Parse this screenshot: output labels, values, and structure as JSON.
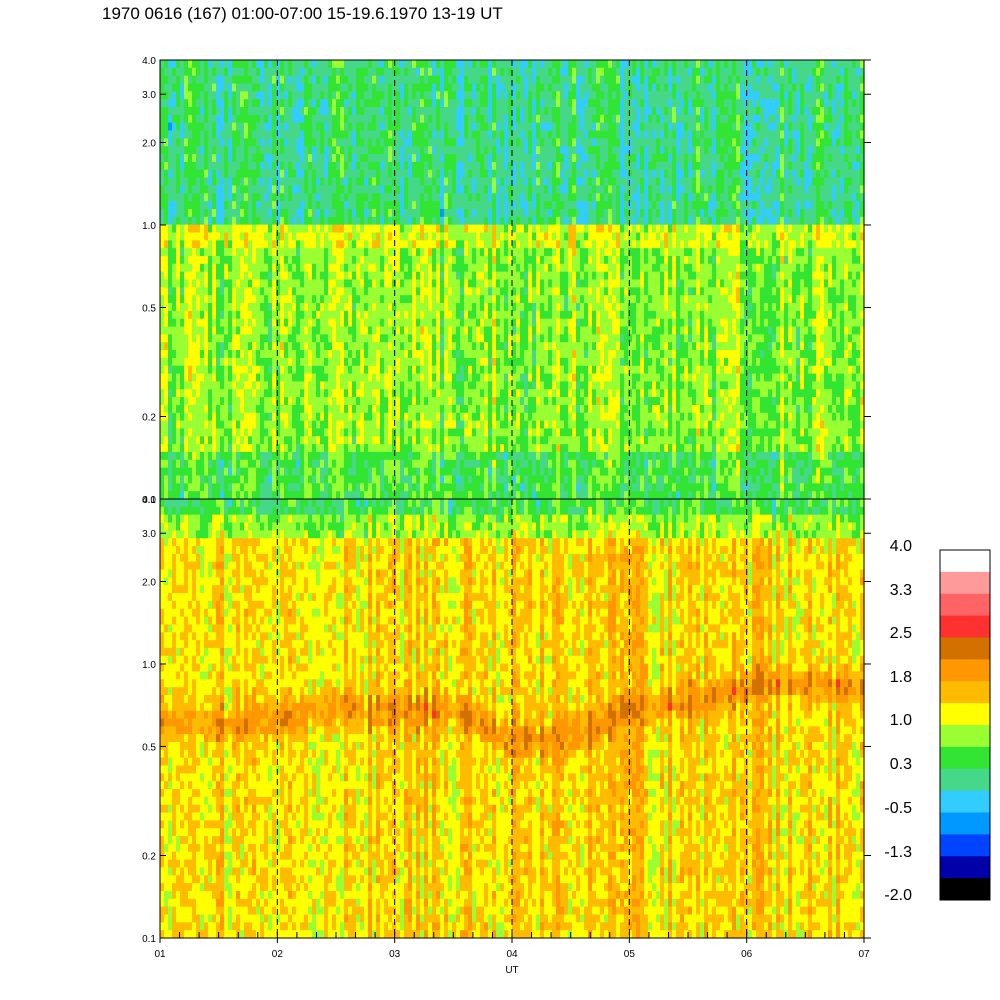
{
  "title": "1970 0616 (167) 01:00-07:00 15-19.6.1970  13-19 UT",
  "chart_data": [
    {
      "type": "heatmap",
      "panel": "upper",
      "y_scale": "log",
      "ylim": [
        0.1,
        4.0
      ],
      "y_ticks": [
        "0.1",
        "0.2",
        "0.5",
        "1.0",
        "2.0",
        "3.0",
        "4.0"
      ],
      "y_tick_values": [
        0.1,
        0.2,
        0.5,
        1.0,
        2.0,
        3.0,
        4.0
      ],
      "xlim": [
        1,
        7
      ],
      "dashed_vertical_lines_at": [
        2,
        3,
        4,
        5,
        6
      ],
      "dominant_levels": [
        {
          "freq_range": [
            0.1,
            0.15
          ],
          "level": 0.3
        },
        {
          "freq_range": [
            0.15,
            0.8
          ],
          "level": 0.7
        },
        {
          "freq_range": [
            0.8,
            1.0
          ],
          "level": 1.0
        },
        {
          "freq_range": [
            1.0,
            4.0
          ],
          "level": 0.0
        }
      ]
    },
    {
      "type": "heatmap",
      "panel": "lower",
      "y_scale": "log",
      "ylim": [
        0.1,
        4.0
      ],
      "y_ticks": [
        "0.1",
        "0.2",
        "0.5",
        "1.0",
        "2.0",
        "3.0",
        "4.0"
      ],
      "y_tick_values": [
        0.1,
        0.2,
        0.5,
        1.0,
        2.0,
        3.0,
        4.0
      ],
      "xlabel": "UT",
      "x_ticks": [
        "01",
        "02",
        "03",
        "04",
        "05",
        "06",
        "07"
      ],
      "x_tick_values": [
        1,
        2,
        3,
        4,
        5,
        6,
        7
      ],
      "xlim": [
        1,
        7
      ],
      "dashed_vertical_lines_at": [
        2,
        3,
        4,
        5,
        6
      ],
      "peak_band": [
        {
          "x": 1.0,
          "freq": 0.62
        },
        {
          "x": 1.5,
          "freq": 0.6
        },
        {
          "x": 2.0,
          "freq": 0.62
        },
        {
          "x": 2.5,
          "freq": 0.7
        },
        {
          "x": 3.0,
          "freq": 0.66
        },
        {
          "x": 3.5,
          "freq": 0.68
        },
        {
          "x": 4.0,
          "freq": 0.52
        },
        {
          "x": 4.5,
          "freq": 0.54
        },
        {
          "x": 5.0,
          "freq": 0.68
        },
        {
          "x": 5.5,
          "freq": 0.74
        },
        {
          "x": 5.85,
          "freq": 0.76
        },
        {
          "x": 6.1,
          "freq": 0.85
        },
        {
          "x": 7.0,
          "freq": 0.83
        }
      ],
      "peak_level": 2.1,
      "background_level": 1.4
    }
  ],
  "colorbar": {
    "labels": [
      "4.0",
      "3.3",
      "2.5",
      "1.8",
      "1.0",
      "0.3",
      "-0.5",
      "-1.3",
      "-2.0"
    ],
    "label_values": [
      4.0,
      3.3,
      2.5,
      1.8,
      1.0,
      0.3,
      -0.5,
      -1.3,
      -2.0
    ],
    "colors_top_to_bottom": [
      "#ffffff",
      "#ff9a9a",
      "#ff6464",
      "#ff3030",
      "#d27000",
      "#ff9800",
      "#ffbb00",
      "#ffff00",
      "#99ff33",
      "#33e533",
      "#44d888",
      "#33ccff",
      "#0099ff",
      "#0044ff",
      "#0000aa",
      "#000000"
    ]
  }
}
